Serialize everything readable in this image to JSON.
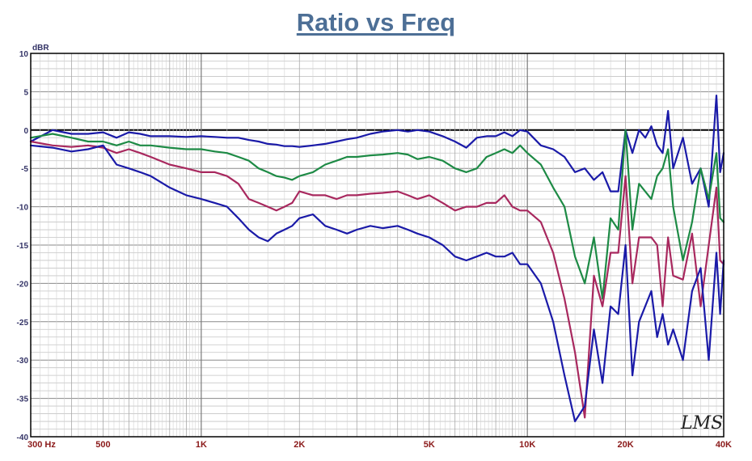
{
  "chart_data": {
    "type": "line",
    "title": "Ratio vs Freq",
    "ylabel": "dBR",
    "xscale": "log",
    "xlim": [
      300,
      40000
    ],
    "ylim": [
      -40,
      10
    ],
    "grid": true,
    "y_ticks": [
      "10",
      "5",
      "0",
      "-5",
      "-10",
      "-15",
      "-20",
      "-25",
      "-30",
      "-35",
      "-40"
    ],
    "x_ticks": [
      {
        "value": 300,
        "label": "300  Hz"
      },
      {
        "value": 500,
        "label": "500"
      },
      {
        "value": 1000,
        "label": "1K"
      },
      {
        "value": 2000,
        "label": "2K"
      },
      {
        "value": 5000,
        "label": "5K"
      },
      {
        "value": 10000,
        "label": "10K"
      },
      {
        "value": 20000,
        "label": "20K"
      },
      {
        "value": 40000,
        "label": "40K"
      }
    ],
    "watermark": "LMS",
    "series": [
      {
        "color": "#1a1aa8",
        "points": [
          [
            300,
            -1.5
          ],
          [
            350,
            0
          ],
          [
            400,
            -0.5
          ],
          [
            450,
            -0.5
          ],
          [
            500,
            -0.3
          ],
          [
            550,
            -1.0
          ],
          [
            600,
            -0.3
          ],
          [
            650,
            -0.5
          ],
          [
            700,
            -0.8
          ],
          [
            800,
            -0.8
          ],
          [
            900,
            -0.9
          ],
          [
            1000,
            -0.8
          ],
          [
            1100,
            -0.9
          ],
          [
            1200,
            -1.0
          ],
          [
            1300,
            -1.0
          ],
          [
            1400,
            -1.3
          ],
          [
            1500,
            -1.5
          ],
          [
            1600,
            -1.8
          ],
          [
            1700,
            -1.9
          ],
          [
            1800,
            -2.1
          ],
          [
            1900,
            -2.1
          ],
          [
            2000,
            -2.2
          ],
          [
            2200,
            -2.0
          ],
          [
            2400,
            -1.8
          ],
          [
            2600,
            -1.5
          ],
          [
            2800,
            -1.2
          ],
          [
            3000,
            -1.0
          ],
          [
            3300,
            -0.5
          ],
          [
            3600,
            -0.2
          ],
          [
            4000,
            0.0
          ],
          [
            4300,
            -0.2
          ],
          [
            4600,
            0.0
          ],
          [
            5000,
            -0.2
          ],
          [
            5500,
            -0.8
          ],
          [
            6000,
            -1.5
          ],
          [
            6500,
            -2.3
          ],
          [
            7000,
            -1.0
          ],
          [
            7500,
            -0.8
          ],
          [
            8000,
            -0.8
          ],
          [
            8500,
            -0.3
          ],
          [
            9000,
            -0.8
          ],
          [
            9500,
            0.0
          ],
          [
            10000,
            -0.2
          ],
          [
            11000,
            -2.0
          ],
          [
            12000,
            -2.5
          ],
          [
            13000,
            -3.5
          ],
          [
            14000,
            -5.5
          ],
          [
            15000,
            -5.0
          ],
          [
            16000,
            -6.5
          ],
          [
            17000,
            -5.5
          ],
          [
            18000,
            -8.0
          ],
          [
            19000,
            -8.0
          ],
          [
            20000,
            0.0
          ],
          [
            21000,
            -3.0
          ],
          [
            22000,
            0.0
          ],
          [
            23000,
            -1.0
          ],
          [
            24000,
            0.5
          ],
          [
            25000,
            -2.0
          ],
          [
            26000,
            -3.0
          ],
          [
            27000,
            2.5
          ],
          [
            28000,
            -5.0
          ],
          [
            30000,
            -1.0
          ],
          [
            32000,
            -7.0
          ],
          [
            34000,
            -5.0
          ],
          [
            36000,
            -10.0
          ],
          [
            38000,
            4.5
          ],
          [
            39000,
            -5.5
          ],
          [
            40000,
            -3.0
          ]
        ]
      },
      {
        "color": "#1d8a45",
        "points": [
          [
            300,
            -1.0
          ],
          [
            350,
            -0.5
          ],
          [
            400,
            -1.0
          ],
          [
            450,
            -1.5
          ],
          [
            500,
            -1.5
          ],
          [
            550,
            -2.0
          ],
          [
            600,
            -1.5
          ],
          [
            650,
            -2.0
          ],
          [
            700,
            -2.0
          ],
          [
            800,
            -2.3
          ],
          [
            900,
            -2.5
          ],
          [
            1000,
            -2.5
          ],
          [
            1100,
            -2.8
          ],
          [
            1200,
            -3.0
          ],
          [
            1300,
            -3.5
          ],
          [
            1400,
            -4.0
          ],
          [
            1500,
            -5.0
          ],
          [
            1600,
            -5.5
          ],
          [
            1700,
            -6.0
          ],
          [
            1800,
            -6.2
          ],
          [
            1900,
            -6.5
          ],
          [
            2000,
            -6.0
          ],
          [
            2200,
            -5.5
          ],
          [
            2400,
            -4.5
          ],
          [
            2600,
            -4.0
          ],
          [
            2800,
            -3.5
          ],
          [
            3000,
            -3.5
          ],
          [
            3300,
            -3.3
          ],
          [
            3600,
            -3.2
          ],
          [
            4000,
            -3.0
          ],
          [
            4300,
            -3.2
          ],
          [
            4600,
            -3.8
          ],
          [
            5000,
            -3.5
          ],
          [
            5500,
            -4.0
          ],
          [
            6000,
            -5.0
          ],
          [
            6500,
            -5.5
          ],
          [
            7000,
            -5.0
          ],
          [
            7500,
            -3.5
          ],
          [
            8000,
            -3.0
          ],
          [
            8500,
            -2.5
          ],
          [
            9000,
            -3.0
          ],
          [
            9500,
            -2.0
          ],
          [
            10000,
            -3.0
          ],
          [
            11000,
            -4.5
          ],
          [
            12000,
            -7.5
          ],
          [
            13000,
            -10.0
          ],
          [
            14000,
            -16.5
          ],
          [
            15000,
            -20.0
          ],
          [
            16000,
            -14.0
          ],
          [
            17000,
            -22.0
          ],
          [
            18000,
            -11.5
          ],
          [
            19000,
            -13.0
          ],
          [
            20000,
            0.0
          ],
          [
            21000,
            -13.0
          ],
          [
            22000,
            -7.0
          ],
          [
            24000,
            -9.0
          ],
          [
            25000,
            -6.0
          ],
          [
            26000,
            -5.0
          ],
          [
            27000,
            -2.5
          ],
          [
            28000,
            -10.0
          ],
          [
            30000,
            -17.0
          ],
          [
            32000,
            -12.0
          ],
          [
            34000,
            -5.0
          ],
          [
            36000,
            -9.0
          ],
          [
            38000,
            -3.0
          ],
          [
            39000,
            -11.5
          ],
          [
            40000,
            -12.0
          ]
        ]
      },
      {
        "color": "#a8285e",
        "points": [
          [
            300,
            -1.5
          ],
          [
            350,
            -2.0
          ],
          [
            400,
            -2.2
          ],
          [
            450,
            -2.0
          ],
          [
            500,
            -2.3
          ],
          [
            550,
            -3.0
          ],
          [
            600,
            -2.5
          ],
          [
            650,
            -3.0
          ],
          [
            700,
            -3.5
          ],
          [
            800,
            -4.5
          ],
          [
            900,
            -5.0
          ],
          [
            1000,
            -5.5
          ],
          [
            1100,
            -5.5
          ],
          [
            1200,
            -6.0
          ],
          [
            1300,
            -7.0
          ],
          [
            1400,
            -9.0
          ],
          [
            1500,
            -9.5
          ],
          [
            1600,
            -10.0
          ],
          [
            1700,
            -10.5
          ],
          [
            1800,
            -10.0
          ],
          [
            1900,
            -9.5
          ],
          [
            2000,
            -8.0
          ],
          [
            2200,
            -8.5
          ],
          [
            2400,
            -8.5
          ],
          [
            2600,
            -9.0
          ],
          [
            2800,
            -8.5
          ],
          [
            3000,
            -8.5
          ],
          [
            3300,
            -8.3
          ],
          [
            3600,
            -8.2
          ],
          [
            4000,
            -8.0
          ],
          [
            4300,
            -8.5
          ],
          [
            4600,
            -9.0
          ],
          [
            5000,
            -8.5
          ],
          [
            5500,
            -9.5
          ],
          [
            6000,
            -10.5
          ],
          [
            6500,
            -10.0
          ],
          [
            7000,
            -10.0
          ],
          [
            7500,
            -9.5
          ],
          [
            8000,
            -9.5
          ],
          [
            8500,
            -8.5
          ],
          [
            9000,
            -10.0
          ],
          [
            9500,
            -10.5
          ],
          [
            10000,
            -10.5
          ],
          [
            11000,
            -12.0
          ],
          [
            12000,
            -16.0
          ],
          [
            13000,
            -22.0
          ],
          [
            14000,
            -29.0
          ],
          [
            15000,
            -37.5
          ],
          [
            16000,
            -19.0
          ],
          [
            17000,
            -23.0
          ],
          [
            18000,
            -16.0
          ],
          [
            19000,
            -16.0
          ],
          [
            20000,
            -6.0
          ],
          [
            21000,
            -20.0
          ],
          [
            22000,
            -14.0
          ],
          [
            24000,
            -14.0
          ],
          [
            25000,
            -15.0
          ],
          [
            26000,
            -23.0
          ],
          [
            27000,
            -14.0
          ],
          [
            28000,
            -19.0
          ],
          [
            30000,
            -19.5
          ],
          [
            32000,
            -13.5
          ],
          [
            34000,
            -23.0
          ],
          [
            36000,
            -15.0
          ],
          [
            38000,
            -7.5
          ],
          [
            39000,
            -17.0
          ],
          [
            40000,
            -17.5
          ]
        ]
      },
      {
        "color": "#1a1aa8",
        "points": [
          [
            300,
            -2.0
          ],
          [
            350,
            -2.3
          ],
          [
            400,
            -2.8
          ],
          [
            450,
            -2.5
          ],
          [
            500,
            -2.0
          ],
          [
            550,
            -4.5
          ],
          [
            600,
            -5.0
          ],
          [
            650,
            -5.5
          ],
          [
            700,
            -6.0
          ],
          [
            800,
            -7.5
          ],
          [
            900,
            -8.5
          ],
          [
            1000,
            -9.0
          ],
          [
            1100,
            -9.5
          ],
          [
            1200,
            -10.0
          ],
          [
            1300,
            -11.5
          ],
          [
            1400,
            -13.0
          ],
          [
            1500,
            -14.0
          ],
          [
            1600,
            -14.5
          ],
          [
            1700,
            -13.5
          ],
          [
            1800,
            -13.0
          ],
          [
            1900,
            -12.5
          ],
          [
            2000,
            -11.5
          ],
          [
            2200,
            -11.0
          ],
          [
            2400,
            -12.5
          ],
          [
            2600,
            -13.0
          ],
          [
            2800,
            -13.5
          ],
          [
            3000,
            -13.0
          ],
          [
            3300,
            -12.5
          ],
          [
            3600,
            -12.8
          ],
          [
            4000,
            -12.5
          ],
          [
            4300,
            -13.0
          ],
          [
            4600,
            -13.5
          ],
          [
            5000,
            -14.0
          ],
          [
            5500,
            -15.0
          ],
          [
            6000,
            -16.5
          ],
          [
            6500,
            -17.0
          ],
          [
            7000,
            -16.5
          ],
          [
            7500,
            -16.0
          ],
          [
            8000,
            -16.5
          ],
          [
            8500,
            -16.5
          ],
          [
            9000,
            -16.0
          ],
          [
            9500,
            -17.5
          ],
          [
            10000,
            -17.5
          ],
          [
            11000,
            -20.0
          ],
          [
            12000,
            -25.0
          ],
          [
            13000,
            -32.0
          ],
          [
            14000,
            -38.0
          ],
          [
            15000,
            -36.0
          ],
          [
            16000,
            -26.0
          ],
          [
            17000,
            -33.0
          ],
          [
            18000,
            -23.0
          ],
          [
            19000,
            -24.0
          ],
          [
            20000,
            -15.0
          ],
          [
            21000,
            -32.0
          ],
          [
            22000,
            -25.0
          ],
          [
            24000,
            -21.0
          ],
          [
            25000,
            -27.0
          ],
          [
            26000,
            -24.0
          ],
          [
            27000,
            -28.0
          ],
          [
            28000,
            -26.0
          ],
          [
            30000,
            -30.0
          ],
          [
            32000,
            -21.0
          ],
          [
            34000,
            -18.0
          ],
          [
            36000,
            -30.0
          ],
          [
            38000,
            -16.0
          ],
          [
            39000,
            -24.0
          ],
          [
            40000,
            -17.0
          ]
        ]
      }
    ]
  }
}
